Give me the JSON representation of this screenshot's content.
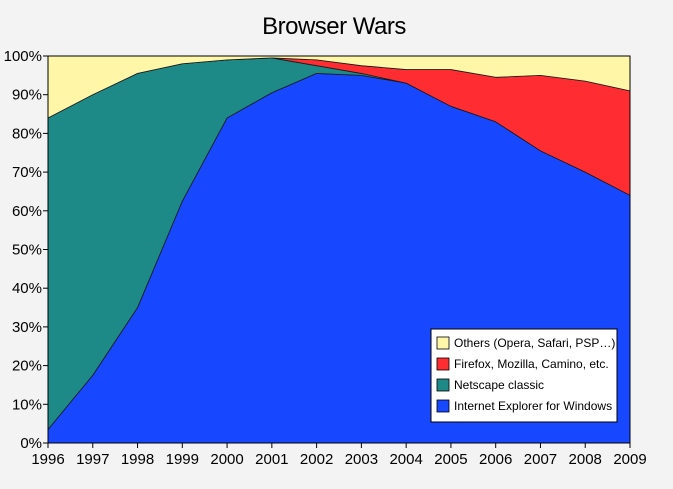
{
  "chart_data": {
    "type": "area",
    "stacked": true,
    "percent_stacked": true,
    "title": "Browser Wars",
    "xlabel": "",
    "ylabel": "",
    "x": [
      1996,
      1997,
      1998,
      1999,
      2000,
      2001,
      2002,
      2003,
      2004,
      2005,
      2006,
      2007,
      2008,
      2009
    ],
    "ylim": [
      0,
      100
    ],
    "yticks": [
      "0%",
      "10%",
      "20%",
      "30%",
      "40%",
      "50%",
      "60%",
      "70%",
      "80%",
      "90%",
      "100%"
    ],
    "grid": false,
    "legend_position": "bottom-right",
    "series": [
      {
        "name": "Internet Explorer for Windows",
        "color": "#1747ff",
        "values": [
          3.5,
          17.5,
          35,
          62.5,
          84,
          90.5,
          95.5,
          95,
          93,
          87,
          83,
          75.5,
          70,
          64
        ]
      },
      {
        "name": "Netscape classic",
        "color": "#1e8a88",
        "values": [
          80.5,
          72.5,
          60.5,
          35.5,
          15,
          9,
          2,
          0.5,
          0,
          0,
          0,
          0,
          0,
          0
        ]
      },
      {
        "name": "Firefox, Mozilla, Camino, etc.",
        "color": "#ff2d32",
        "values": [
          0,
          0,
          0,
          0,
          0,
          0,
          1.5,
          2,
          3.5,
          9.5,
          11.5,
          19.5,
          23.5,
          27
        ]
      },
      {
        "name": "Others (Opera, Safari, PSP…)",
        "color": "#fff6a8",
        "values": [
          16,
          10,
          4.5,
          2,
          1,
          0.5,
          1,
          2.5,
          3.5,
          3.5,
          5.5,
          5,
          6.5,
          9
        ]
      }
    ],
    "legend_order": [
      "Others (Opera, Safari, PSP…)",
      "Firefox, Mozilla, Camino, etc.",
      "Netscape classic",
      "Internet Explorer for Windows"
    ]
  }
}
